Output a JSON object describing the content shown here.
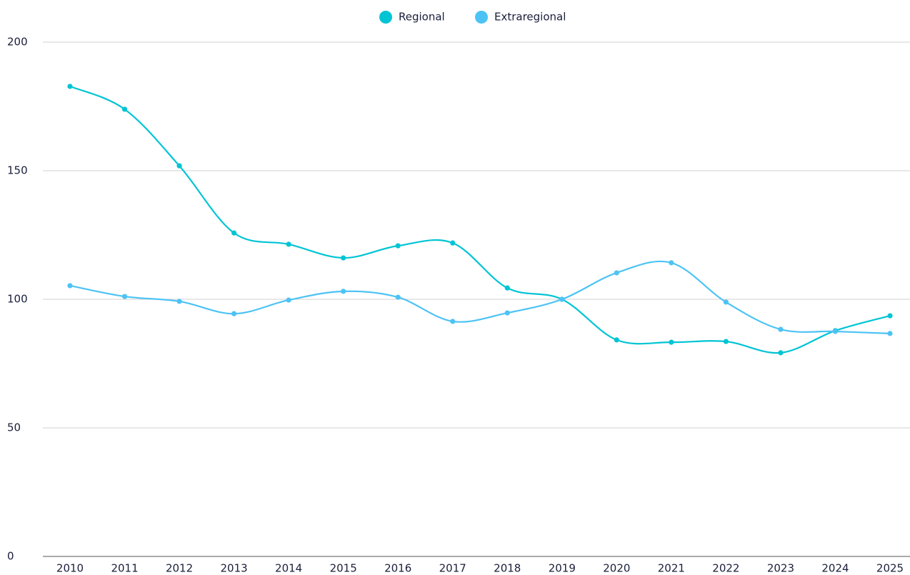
{
  "chart_data": {
    "type": "line",
    "categories": [
      "2010",
      "2011",
      "2012",
      "2013",
      "2014",
      "2015",
      "2016",
      "2017",
      "2018",
      "2019",
      "2020",
      "2021",
      "2022",
      "2023",
      "2024",
      "2025"
    ],
    "series": [
      {
        "name": "Regional",
        "color": "#00c4d4",
        "values": [
          182.8,
          173.9,
          151.9,
          125.8,
          121.4,
          116.1,
          120.8,
          121.9,
          104.4,
          100,
          84.2,
          83.3,
          83.6,
          79.2,
          87.8,
          93.6
        ]
      },
      {
        "name": "Extraregional",
        "color": "#4dc3f5",
        "values": [
          105.3,
          101.1,
          99.2,
          94.4,
          99.7,
          103.1,
          100.8,
          91.4,
          94.7,
          100,
          110.3,
          114.2,
          98.9,
          88.3,
          87.5,
          86.7
        ]
      }
    ],
    "ylim": [
      0,
      200
    ],
    "yticks": [
      0,
      50,
      100,
      150,
      200
    ],
    "grid": true,
    "legend": "top"
  }
}
